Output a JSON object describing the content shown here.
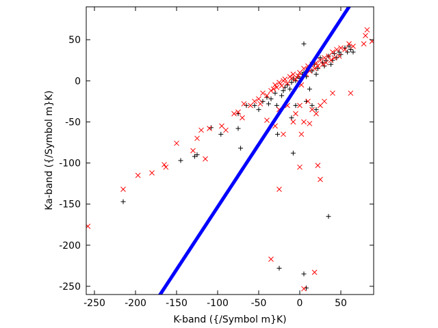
{
  "chart_data": {
    "type": "scatter",
    "xlabel": "K-band ({/Symbol m}K)",
    "ylabel": "Ka-band ({/Symbol m}K)",
    "xlim": [
      -260,
      90
    ],
    "ylim": [
      -260,
      90
    ],
    "xticks": [
      -250,
      -200,
      -150,
      -100,
      -50,
      0,
      50
    ],
    "yticks": [
      -250,
      -200,
      -150,
      -100,
      -50,
      0,
      50
    ],
    "grid": false,
    "legend": "none",
    "series": [
      {
        "marker": "plus",
        "color": "#000000",
        "points": [
          [
            -215,
            -147
          ],
          [
            -145,
            -97
          ],
          [
            -128,
            -92
          ],
          [
            -125,
            -90
          ],
          [
            -108,
            -57
          ],
          [
            -96,
            -65
          ],
          [
            -75,
            -40
          ],
          [
            -75,
            -58
          ],
          [
            -72,
            -82
          ],
          [
            -65,
            -30
          ],
          [
            -55,
            -30
          ],
          [
            -50,
            -35
          ],
          [
            -45,
            -25
          ],
          [
            -40,
            -20
          ],
          [
            -38,
            -28
          ],
          [
            -35,
            -22
          ],
          [
            -30,
            -15
          ],
          [
            -28,
            -30
          ],
          [
            -27,
            -65
          ],
          [
            -22,
            -18
          ],
          [
            -20,
            -12
          ],
          [
            -18,
            -8
          ],
          [
            -15,
            -5
          ],
          [
            -12,
            -10
          ],
          [
            -10,
            -2
          ],
          [
            -8,
            2
          ],
          [
            -5,
            0
          ],
          [
            -2,
            5
          ],
          [
            0,
            3
          ],
          [
            3,
            8
          ],
          [
            5,
            10
          ],
          [
            8,
            5
          ],
          [
            10,
            15
          ],
          [
            12,
            -10
          ],
          [
            15,
            12
          ],
          [
            18,
            20
          ],
          [
            20,
            8
          ],
          [
            22,
            15
          ],
          [
            25,
            28
          ],
          [
            28,
            22
          ],
          [
            30,
            18
          ],
          [
            32,
            25
          ],
          [
            35,
            30
          ],
          [
            38,
            20
          ],
          [
            40,
            25
          ],
          [
            42,
            33
          ],
          [
            45,
            28
          ],
          [
            48,
            35
          ],
          [
            50,
            32
          ],
          [
            55,
            40
          ],
          [
            58,
            35
          ],
          [
            60,
            42
          ],
          [
            62,
            38
          ],
          [
            65,
            35
          ],
          [
            5,
            45
          ],
          [
            -5,
            -30
          ],
          [
            -10,
            -45
          ],
          [
            8,
            -25
          ],
          [
            15,
            -30
          ],
          [
            20,
            -35
          ],
          [
            -8,
            -88
          ],
          [
            -25,
            -228
          ],
          [
            5,
            -235
          ],
          [
            8,
            -252
          ],
          [
            35,
            -165
          ]
        ]
      },
      {
        "marker": "cross",
        "color": "#ff0000",
        "points": [
          [
            -258,
            -177
          ],
          [
            -215,
            -132
          ],
          [
            -197,
            -115
          ],
          [
            -180,
            -112
          ],
          [
            -165,
            -102
          ],
          [
            -163,
            -105
          ],
          [
            -150,
            -76
          ],
          [
            -130,
            -85
          ],
          [
            -125,
            -70
          ],
          [
            -120,
            -60
          ],
          [
            -115,
            -95
          ],
          [
            -110,
            -58
          ],
          [
            -95,
            -55
          ],
          [
            -90,
            -60
          ],
          [
            -80,
            -40
          ],
          [
            -75,
            -38
          ],
          [
            -70,
            -45
          ],
          [
            -68,
            -28
          ],
          [
            -60,
            -30
          ],
          [
            -55,
            -25
          ],
          [
            -50,
            -22
          ],
          [
            -48,
            -28
          ],
          [
            -45,
            -15
          ],
          [
            -40,
            -18
          ],
          [
            -35,
            -12
          ],
          [
            -32,
            -10
          ],
          [
            -30,
            -5
          ],
          [
            -28,
            -8
          ],
          [
            -25,
            -2
          ],
          [
            -22,
            -6
          ],
          [
            -20,
            0
          ],
          [
            -18,
            2
          ],
          [
            -15,
            -3
          ],
          [
            -12,
            5
          ],
          [
            -10,
            3
          ],
          [
            -8,
            8
          ],
          [
            -5,
            2
          ],
          [
            -2,
            6
          ],
          [
            0,
            10
          ],
          [
            2,
            -5
          ],
          [
            5,
            15
          ],
          [
            8,
            8
          ],
          [
            10,
            18
          ],
          [
            12,
            12
          ],
          [
            15,
            20
          ],
          [
            18,
            15
          ],
          [
            20,
            22
          ],
          [
            22,
            18
          ],
          [
            25,
            25
          ],
          [
            28,
            20
          ],
          [
            30,
            28
          ],
          [
            32,
            22
          ],
          [
            35,
            30
          ],
          [
            38,
            25
          ],
          [
            40,
            35
          ],
          [
            42,
            28
          ],
          [
            45,
            38
          ],
          [
            48,
            30
          ],
          [
            50,
            40
          ],
          [
            55,
            38
          ],
          [
            60,
            45
          ],
          [
            65,
            42
          ],
          [
            78,
            45
          ],
          [
            80,
            55
          ],
          [
            82,
            62
          ],
          [
            88,
            48
          ],
          [
            -40,
            -48
          ],
          [
            -30,
            -55
          ],
          [
            -25,
            -35
          ],
          [
            -15,
            -30
          ],
          [
            -8,
            -50
          ],
          [
            -5,
            -40
          ],
          [
            0,
            -30
          ],
          [
            5,
            -50
          ],
          [
            10,
            -25
          ],
          [
            15,
            -35
          ],
          [
            20,
            -40
          ],
          [
            25,
            -30
          ],
          [
            30,
            -25
          ],
          [
            40,
            -15
          ],
          [
            62,
            -15
          ],
          [
            -20,
            -65
          ],
          [
            2,
            -65
          ],
          [
            12,
            -52
          ],
          [
            -35,
            -217
          ],
          [
            -25,
            -132
          ],
          [
            0,
            -105
          ],
          [
            22,
            -103
          ],
          [
            25,
            -120
          ],
          [
            18,
            -233
          ],
          [
            5,
            -253
          ]
        ]
      },
      {
        "marker": "dot",
        "color": "#0000ff",
        "line": {
          "from": [
            -170,
            -260
          ],
          "to": [
            60,
            90
          ]
        }
      }
    ]
  }
}
